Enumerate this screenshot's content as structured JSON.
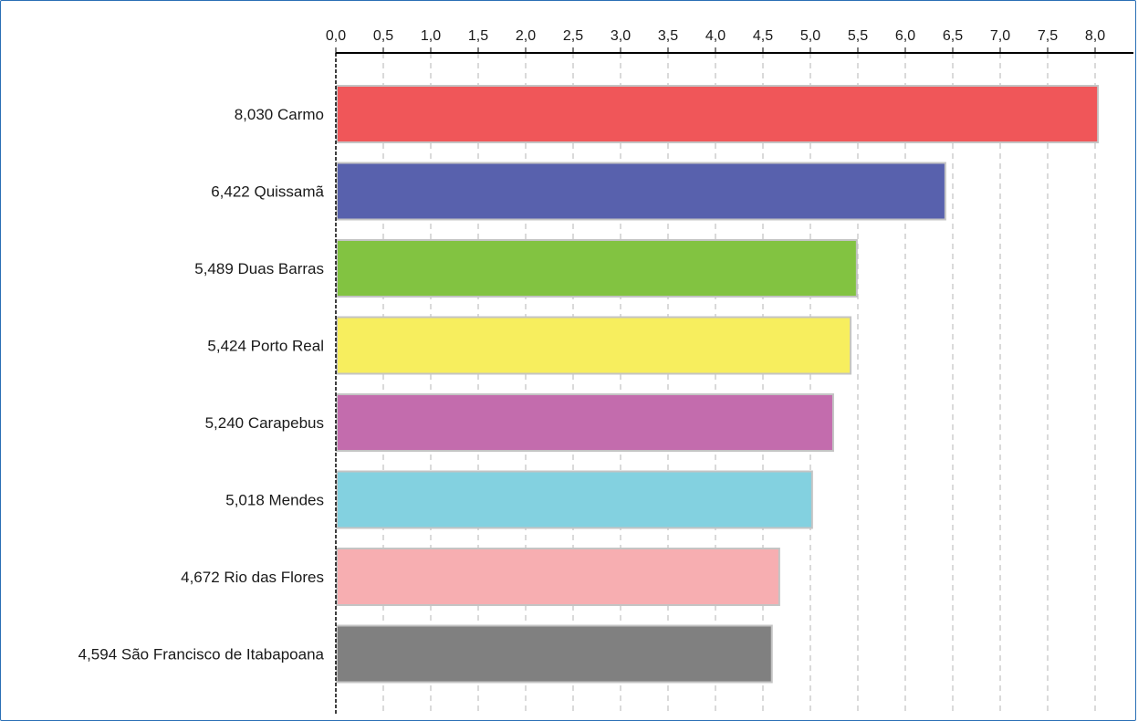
{
  "chart_data": {
    "type": "bar",
    "orientation": "horizontal",
    "title": "",
    "xlabel": "",
    "ylabel": "",
    "xlim": [
      0,
      8
    ],
    "tick_values": [
      0,
      0.5,
      1,
      1.5,
      2,
      2.5,
      3,
      3.5,
      4,
      4.5,
      5,
      5.5,
      6,
      6.5,
      7,
      7.5,
      8
    ],
    "tick_labels": [
      "0,0",
      "0,5",
      "1,0",
      "1,5",
      "2,0",
      "2,5",
      "3,0",
      "3,5",
      "4,0",
      "4,5",
      "5,0",
      "5,5",
      "6,0",
      "6,5",
      "7,0",
      "7,5",
      "8,0"
    ],
    "grid": true,
    "axis_position": "top",
    "categories": [
      "8,030 Carmo",
      "6,422 Quissamã",
      "5,489 Duas Barras",
      "5,424 Porto Real",
      "5,240 Carapebus",
      "5,018 Mendes",
      "4,672 Rio das Flores",
      "4,594 São Francisco de Itabapoana"
    ],
    "values": [
      8.03,
      6.422,
      5.489,
      5.424,
      5.24,
      5.018,
      4.672,
      4.594
    ],
    "colors": [
      "#f05659",
      "#5861ad",
      "#82c341",
      "#f7ee5e",
      "#c36cad",
      "#83d1e0",
      "#f7aeb1",
      "#808080"
    ]
  }
}
